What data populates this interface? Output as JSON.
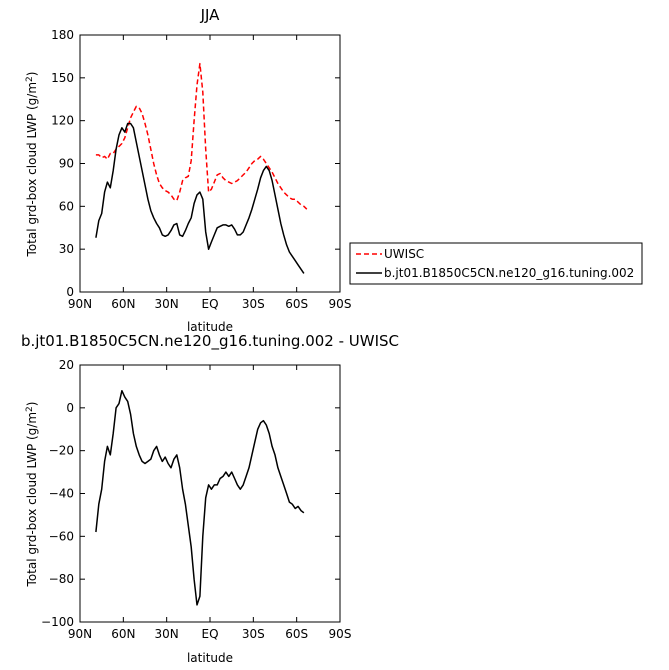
{
  "chart_data": [
    {
      "type": "line",
      "title": "JJA",
      "xlabel": "latitude",
      "ylabel": "Total grd-box cloud LWP (g/m²)",
      "ylabel_text": "Total grd-box cloud LWP (g/m",
      "ylabel_sup": "2",
      "ylabel_close": ")",
      "xlim": [
        90,
        -90
      ],
      "ylim": [
        0,
        180
      ],
      "x_ticks": [
        90,
        60,
        30,
        0,
        -30,
        -60,
        -90
      ],
      "x_tick_labels": [
        "90N",
        "60N",
        "30N",
        "EQ",
        "30S",
        "60S",
        "90S"
      ],
      "y_ticks": [
        0,
        30,
        60,
        90,
        120,
        150,
        180
      ],
      "y_tick_labels": [
        "0",
        "30",
        "60",
        "90",
        "120",
        "150",
        "180"
      ],
      "legend": {
        "placement": "right"
      },
      "series": [
        {
          "name": "UWISC",
          "color": "#ff0000",
          "dash": "dashed",
          "x": [
            79,
            77,
            75,
            73,
            71,
            69,
            67,
            65,
            63,
            61,
            59,
            57,
            55,
            53,
            51,
            49,
            47,
            45,
            43,
            41,
            39,
            37,
            35,
            33,
            31,
            29,
            27,
            25,
            23,
            21,
            19,
            17,
            15,
            13,
            11,
            9,
            7,
            5,
            3,
            1,
            -1,
            -3,
            -5,
            -7,
            -9,
            -11,
            -13,
            -15,
            -17,
            -19,
            -21,
            -23,
            -25,
            -27,
            -29,
            -31,
            -33,
            -35,
            -37,
            -39,
            -41,
            -43,
            -45,
            -47,
            -49,
            -51,
            -53,
            -55,
            -57,
            -59,
            -61,
            -63,
            -65,
            -67
          ],
          "values": [
            96,
            96,
            94,
            95,
            93,
            97,
            97,
            100,
            102,
            104,
            108,
            115,
            122,
            126,
            130,
            129,
            125,
            118,
            110,
            100,
            90,
            82,
            76,
            73,
            71,
            70,
            68,
            65,
            64,
            70,
            78,
            80,
            81,
            92,
            120,
            145,
            160,
            140,
            100,
            70,
            72,
            77,
            82,
            83,
            80,
            78,
            77,
            76,
            77,
            78,
            80,
            82,
            84,
            87,
            90,
            92,
            93,
            95,
            93,
            90,
            87,
            84,
            80,
            76,
            73,
            70,
            68,
            66,
            65,
            65,
            63,
            61,
            60,
            58
          ]
        },
        {
          "name": "b.jt01.B1850C5CN.ne120_g16.tuning.002",
          "color": "#000000",
          "dash": "solid",
          "x": [
            79,
            77,
            75,
            73,
            71,
            69,
            67,
            65,
            63,
            61,
            59,
            57,
            55,
            53,
            51,
            49,
            47,
            45,
            43,
            41,
            39,
            37,
            35,
            33,
            31,
            29,
            27,
            25,
            23,
            21,
            19,
            17,
            15,
            13,
            11,
            9,
            7,
            5,
            3,
            1,
            -1,
            -3,
            -5,
            -7,
            -9,
            -11,
            -13,
            -15,
            -17,
            -19,
            -21,
            -23,
            -25,
            -27,
            -29,
            -31,
            -33,
            -35,
            -37,
            -39,
            -41,
            -43,
            -45,
            -47,
            -49,
            -51,
            -53,
            -55,
            -57,
            -59,
            -61,
            -63,
            -65
          ],
          "values": [
            38,
            50,
            55,
            70,
            77,
            73,
            85,
            100,
            110,
            115,
            112,
            118,
            118,
            115,
            105,
            95,
            85,
            75,
            65,
            57,
            52,
            48,
            45,
            40,
            39,
            40,
            43,
            47,
            48,
            40,
            39,
            43,
            48,
            52,
            62,
            68,
            70,
            65,
            42,
            30,
            35,
            40,
            45,
            46,
            47,
            47,
            46,
            47,
            44,
            40,
            40,
            42,
            47,
            52,
            58,
            65,
            72,
            80,
            85,
            88,
            85,
            78,
            68,
            58,
            48,
            40,
            33,
            28,
            25,
            22,
            19,
            16,
            13
          ]
        }
      ]
    },
    {
      "type": "line",
      "title": "b.jt01.B1850C5CN.ne120_g16.tuning.002 - UWISC",
      "xlabel": "latitude",
      "ylabel": "Total grd-box cloud LWP (g/m²)",
      "ylabel_text": "Total grd-box cloud LWP (g/m",
      "ylabel_sup": "2",
      "ylabel_close": ")",
      "xlim": [
        90,
        -90
      ],
      "ylim": [
        -100,
        20
      ],
      "x_ticks": [
        90,
        60,
        30,
        0,
        -30,
        -60,
        -90
      ],
      "x_tick_labels": [
        "90N",
        "60N",
        "30N",
        "EQ",
        "30S",
        "60S",
        "90S"
      ],
      "y_ticks": [
        -100,
        -80,
        -60,
        -40,
        -20,
        0,
        20
      ],
      "y_tick_labels": [
        "−100",
        "−80",
        "−60",
        "−40",
        "−20",
        "0",
        "20"
      ],
      "series": [
        {
          "color": "#000000",
          "dash": "solid",
          "x": [
            79,
            77,
            75,
            73,
            71,
            69,
            67,
            65,
            63,
            61,
            59,
            57,
            55,
            53,
            51,
            49,
            47,
            45,
            43,
            41,
            39,
            37,
            35,
            33,
            31,
            29,
            27,
            25,
            23,
            21,
            19,
            17,
            15,
            13,
            11,
            9,
            7,
            5,
            3,
            1,
            -1,
            -3,
            -5,
            -7,
            -9,
            -11,
            -13,
            -15,
            -17,
            -19,
            -21,
            -23,
            -25,
            -27,
            -29,
            -31,
            -33,
            -35,
            -37,
            -39,
            -41,
            -43,
            -45,
            -47,
            -49,
            -51,
            -53,
            -55,
            -57,
            -59,
            -61,
            -63,
            -65
          ],
          "values": [
            -58,
            -45,
            -38,
            -25,
            -18,
            -22,
            -12,
            0,
            2,
            8,
            5,
            3,
            -3,
            -12,
            -18,
            -22,
            -25,
            -26,
            -25,
            -24,
            -20,
            -18,
            -22,
            -25,
            -23,
            -26,
            -28,
            -24,
            -22,
            -28,
            -38,
            -45,
            -55,
            -65,
            -80,
            -92,
            -88,
            -60,
            -42,
            -36,
            -38,
            -36,
            -36,
            -33,
            -32,
            -30,
            -32,
            -30,
            -33,
            -36,
            -38,
            -36,
            -32,
            -28,
            -22,
            -16,
            -10,
            -7,
            -6,
            -8,
            -12,
            -18,
            -22,
            -28,
            -32,
            -36,
            -40,
            -44,
            -45,
            -47,
            -46,
            -48,
            -49
          ]
        }
      ]
    }
  ]
}
